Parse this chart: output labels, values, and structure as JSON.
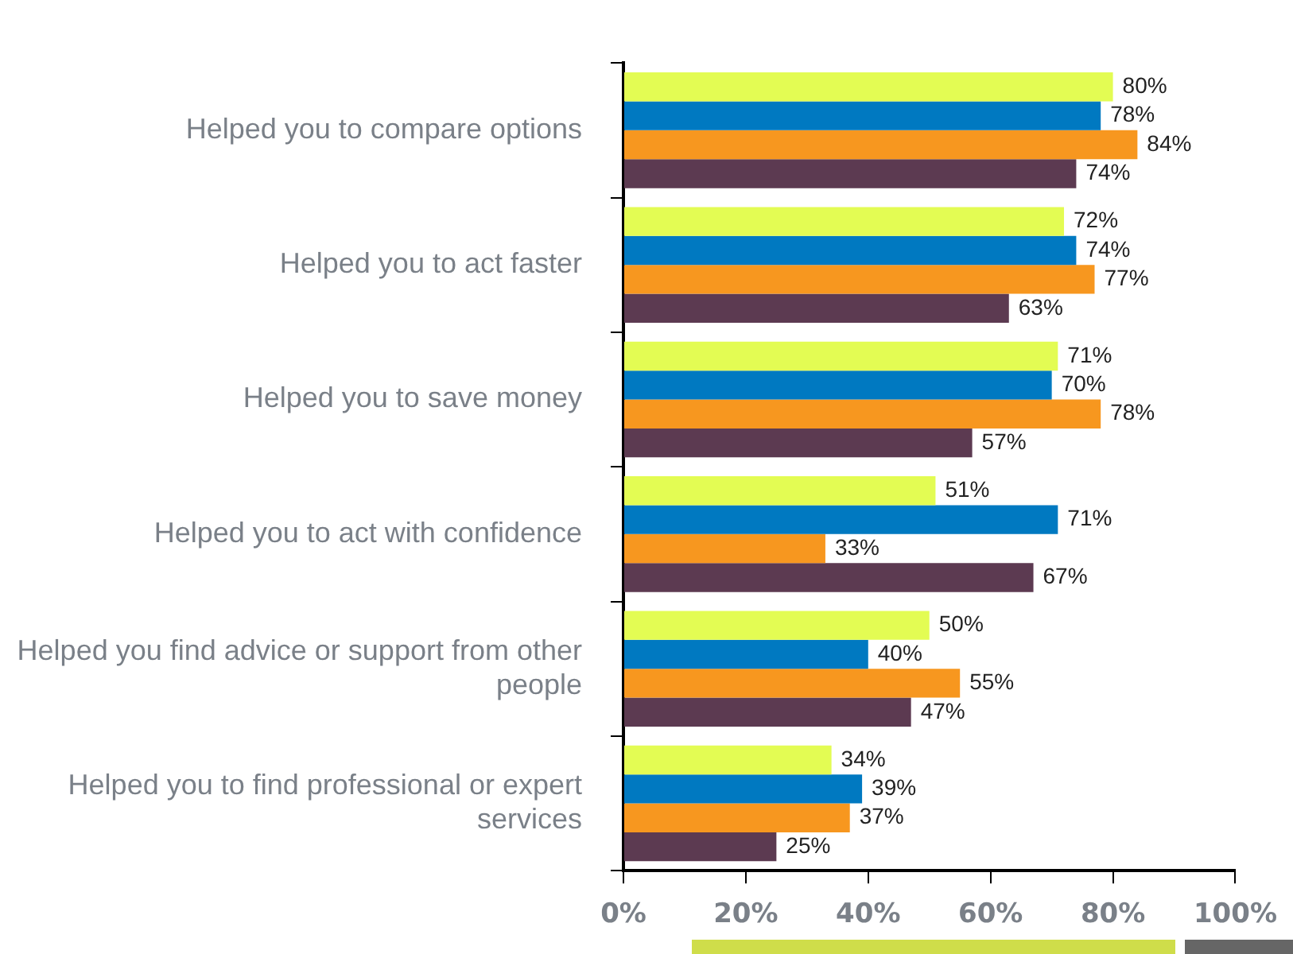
{
  "chart_data": {
    "type": "bar",
    "orientation": "horizontal",
    "categories": [
      "Helped you to compare options",
      "Helped you to act faster",
      "Helped you to save money",
      "Helped you to act with confidence",
      "Helped you find advice or support from other people",
      "Helped you to find professional or expert services"
    ],
    "series": [
      {
        "color": "#e3fc53",
        "values": [
          80,
          72,
          71,
          51,
          50,
          34
        ],
        "value_labels": [
          "80%",
          "72%",
          "71%",
          "51%",
          "50%",
          "34%"
        ]
      },
      {
        "color": "#0079c1",
        "values": [
          78,
          74,
          70,
          71,
          40,
          39
        ],
        "value_labels": [
          "78%",
          "74%",
          "70%",
          "71%",
          "40%",
          "39%"
        ]
      },
      {
        "color": "#f7971f",
        "values": [
          84,
          77,
          78,
          33,
          55,
          37
        ],
        "value_labels": [
          "84%",
          "77%",
          "78%",
          "33%",
          "55%",
          "37%"
        ]
      },
      {
        "color": "#5c3a51",
        "values": [
          74,
          63,
          57,
          67,
          47,
          25
        ],
        "value_labels": [
          "74%",
          "63%",
          "57%",
          "67%",
          "47%",
          "25%"
        ]
      }
    ],
    "xlim": [
      0,
      100
    ],
    "xticks": [
      {
        "value": 0,
        "label": "0%"
      },
      {
        "value": 20,
        "label": "20%"
      },
      {
        "value": 40,
        "label": "40%"
      },
      {
        "value": 60,
        "label": "60%"
      },
      {
        "value": 80,
        "label": "80%"
      },
      {
        "value": 100,
        "label": "100%"
      }
    ],
    "grid": false,
    "legend": false
  }
}
